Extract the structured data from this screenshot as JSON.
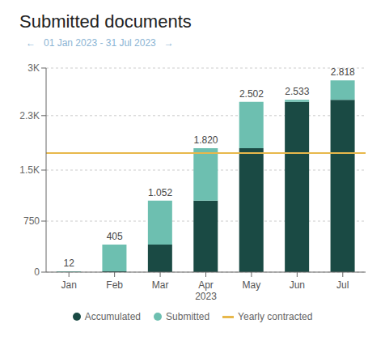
{
  "chart_data": {
    "type": "bar",
    "stacked": true,
    "title": "Submitted documents",
    "subtitle": "←   01 Jan 2023 - 31 Jul 2023   →",
    "categories": [
      "Jan",
      "Feb",
      "Mar",
      "Apr\n2023",
      "May",
      "Jun",
      "Jul"
    ],
    "series": [
      {
        "name": "Accumulated",
        "color": "#1a4a44",
        "values": [
          0,
          12,
          405,
          1052,
          1820,
          2502,
          2533
        ]
      },
      {
        "name": "Submitted",
        "color": "#6dbfb0",
        "values": [
          12,
          393,
          647,
          768,
          682,
          31,
          285
        ]
      }
    ],
    "totals": [
      12,
      405,
      1052,
      1820,
      2502,
      2533,
      2818
    ],
    "total_labels": [
      "12",
      "405",
      "1.052",
      "1.820",
      "2.502",
      "2.533",
      "2.818"
    ],
    "reference_line": {
      "name": "Yearly contracted",
      "value": 1750,
      "color": "#e8b84b"
    },
    "ylim": [
      0,
      3000
    ],
    "yticks": [
      0,
      750,
      {
        "value": 1500,
        "label": "1.5K"
      },
      {
        "value": 2300,
        "label": "2.3K"
      },
      {
        "value": 3000,
        "label": "3K"
      }
    ],
    "grid": true,
    "legend": "bottom"
  }
}
